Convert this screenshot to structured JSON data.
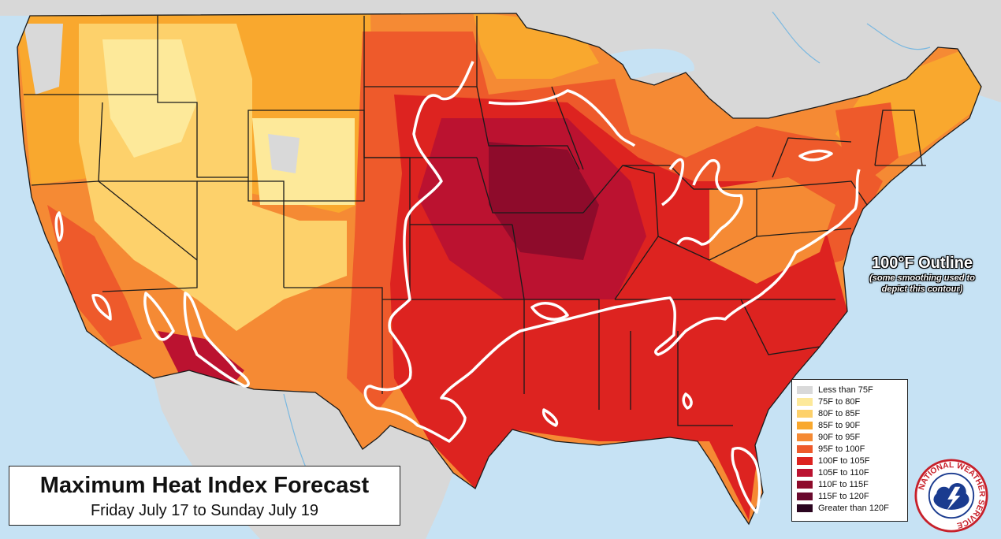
{
  "title": {
    "main": "Maximum Heat Index Forecast",
    "sub": "Friday July 17 to Sunday July 19"
  },
  "outline_note": {
    "title": "100°F Outline",
    "subtitle": "(some smoothing used to depict this contour)"
  },
  "legend": [
    {
      "label": "Less than 75F",
      "color": "#d9d9d9"
    },
    {
      "label": "75F to 80F",
      "color": "#fde99a"
    },
    {
      "label": "80F to 85F",
      "color": "#fdd16b"
    },
    {
      "label": "85F to 90F",
      "color": "#f9a82e"
    },
    {
      "label": "90F to 95F",
      "color": "#f58a34"
    },
    {
      "label": "95F to 100F",
      "color": "#ee5a2b"
    },
    {
      "label": "100F to 105F",
      "color": "#dd2320"
    },
    {
      "label": "105F to 110F",
      "color": "#bb1230"
    },
    {
      "label": "110F to 115F",
      "color": "#8e0b2b"
    },
    {
      "label": "115F to 120F",
      "color": "#6a0a2e"
    },
    {
      "label": "Greater than 120F",
      "color": "#2b0520"
    }
  ],
  "logo": {
    "text": "NATIONAL WEATHER SERVICE",
    "icon": "nws-logo-icon"
  },
  "colors": {
    "water": "#c6e2f4",
    "canada_mexico": "#d8d8d8",
    "contour": "#ffffff",
    "state_borders": "#1a1a1a"
  }
}
